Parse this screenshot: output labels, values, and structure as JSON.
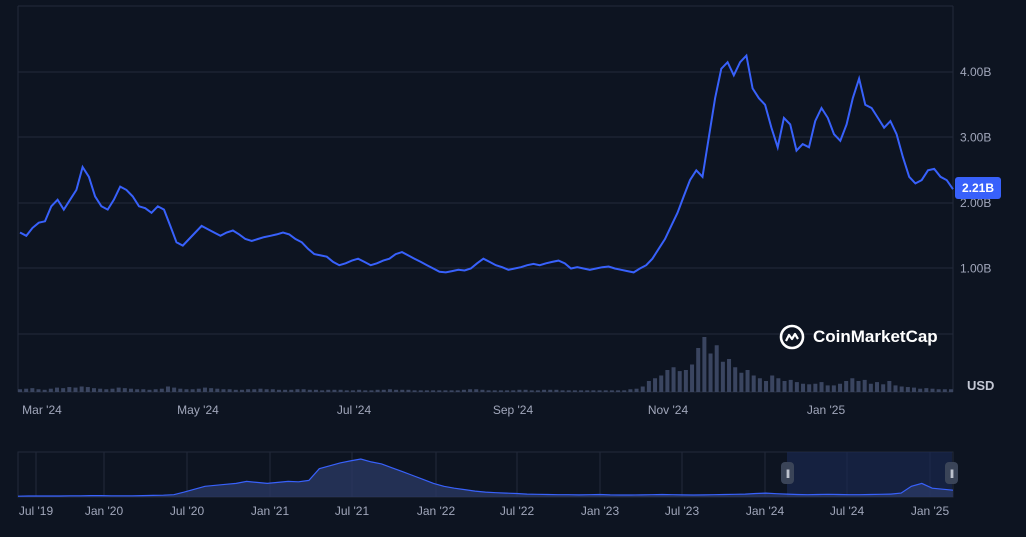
{
  "chart_data": {
    "type": "line",
    "main": {
      "series": [
        {
          "values": [
            1.55,
            1.5,
            1.62,
            1.7,
            1.72,
            1.95,
            2.05,
            1.9,
            2.05,
            2.2,
            2.55,
            2.4,
            2.1,
            1.95,
            1.9,
            2.05,
            2.25,
            2.2,
            2.1,
            1.95,
            1.92,
            1.85,
            1.95,
            1.9,
            1.65,
            1.4,
            1.35,
            1.45,
            1.55,
            1.65,
            1.6,
            1.55,
            1.5,
            1.55,
            1.58,
            1.52,
            1.45,
            1.42,
            1.45,
            1.48,
            1.5,
            1.52,
            1.55,
            1.52,
            1.45,
            1.4,
            1.3,
            1.22,
            1.2,
            1.18,
            1.1,
            1.05,
            1.08,
            1.12,
            1.15,
            1.1,
            1.05,
            1.08,
            1.12,
            1.15,
            1.22,
            1.25,
            1.2,
            1.15,
            1.1,
            1.05,
            1.0,
            0.95,
            0.94,
            0.96,
            0.98,
            0.97,
            1.0,
            1.08,
            1.15,
            1.1,
            1.05,
            1.02,
            0.98,
            1.0,
            1.02,
            1.05,
            1.07,
            1.05,
            1.08,
            1.1,
            1.12,
            1.08,
            1.0,
            1.02,
            1.0,
            0.98,
            1.0,
            1.02,
            1.03,
            1.0,
            0.98,
            0.96,
            0.94,
            1.0,
            1.05,
            1.15,
            1.3,
            1.45,
            1.65,
            1.85,
            2.1,
            2.35,
            2.5,
            2.4,
            3.0,
            3.6,
            4.05,
            4.15,
            3.95,
            4.15,
            4.25,
            3.75,
            3.6,
            3.5,
            3.15,
            2.85,
            3.3,
            3.2,
            2.8,
            2.9,
            2.85,
            3.25,
            3.45,
            3.3,
            3.05,
            2.95,
            3.2,
            3.6,
            3.9,
            3.5,
            3.45,
            3.3,
            3.15,
            3.25,
            3.05,
            2.7,
            2.4,
            2.3,
            2.35,
            2.5,
            2.52,
            2.4,
            2.35,
            2.21
          ]
        }
      ],
      "volume": [
        0.05,
        0.06,
        0.07,
        0.05,
        0.04,
        0.06,
        0.08,
        0.07,
        0.09,
        0.08,
        0.1,
        0.09,
        0.07,
        0.06,
        0.05,
        0.06,
        0.08,
        0.07,
        0.06,
        0.05,
        0.05,
        0.04,
        0.05,
        0.06,
        0.1,
        0.08,
        0.06,
        0.05,
        0.05,
        0.06,
        0.08,
        0.07,
        0.06,
        0.05,
        0.05,
        0.04,
        0.04,
        0.05,
        0.05,
        0.06,
        0.05,
        0.05,
        0.04,
        0.04,
        0.04,
        0.05,
        0.05,
        0.04,
        0.04,
        0.03,
        0.04,
        0.04,
        0.04,
        0.03,
        0.03,
        0.04,
        0.03,
        0.03,
        0.04,
        0.04,
        0.05,
        0.04,
        0.04,
        0.04,
        0.03,
        0.03,
        0.03,
        0.03,
        0.03,
        0.03,
        0.03,
        0.03,
        0.04,
        0.05,
        0.05,
        0.04,
        0.03,
        0.03,
        0.03,
        0.03,
        0.03,
        0.04,
        0.04,
        0.03,
        0.03,
        0.04,
        0.04,
        0.04,
        0.03,
        0.03,
        0.03,
        0.03,
        0.03,
        0.03,
        0.03,
        0.03,
        0.03,
        0.03,
        0.03,
        0.05,
        0.06,
        0.1,
        0.2,
        0.25,
        0.3,
        0.4,
        0.45,
        0.38,
        0.4,
        0.5,
        0.8,
        1.0,
        0.7,
        0.85,
        0.55,
        0.6,
        0.45,
        0.35,
        0.4,
        0.3,
        0.25,
        0.2,
        0.3,
        0.25,
        0.2,
        0.22,
        0.18,
        0.15,
        0.14,
        0.15,
        0.18,
        0.12,
        0.12,
        0.15,
        0.2,
        0.25,
        0.2,
        0.22,
        0.15,
        0.18,
        0.14,
        0.2,
        0.12,
        0.1,
        0.09,
        0.08,
        0.06,
        0.07,
        0.06,
        0.05,
        0.05,
        0.05
      ],
      "x_ticks": [
        "Mar '24",
        "May '24",
        "Jul '24",
        "Sep '24",
        "Nov '24",
        "Jan '25"
      ],
      "y_ticks": [
        "1.00B",
        "2.00B",
        "3.00B",
        "4.00B"
      ],
      "y_tick_values": [
        1,
        2,
        3,
        4
      ],
      "ylim": [
        0,
        4.5
      ],
      "current_value": 2.21,
      "current_label": "2.21B",
      "currency_label": "USD"
    },
    "navigator": {
      "values": [
        0.04,
        0.05,
        0.05,
        0.05,
        0.05,
        0.06,
        0.06,
        0.07,
        0.07,
        0.06,
        0.06,
        0.06,
        0.07,
        0.08,
        0.09,
        0.12,
        0.25,
        0.4,
        0.55,
        0.6,
        0.65,
        0.7,
        0.8,
        0.75,
        0.7,
        0.75,
        0.8,
        0.78,
        0.85,
        1.45,
        1.6,
        1.75,
        1.85,
        1.95,
        1.8,
        1.7,
        1.5,
        1.3,
        1.1,
        0.9,
        0.7,
        0.55,
        0.45,
        0.38,
        0.3,
        0.25,
        0.22,
        0.2,
        0.18,
        0.15,
        0.14,
        0.13,
        0.12,
        0.12,
        0.11,
        0.12,
        0.13,
        0.11,
        0.1,
        0.1,
        0.11,
        0.12,
        0.13,
        0.12,
        0.11,
        0.1,
        0.11,
        0.12,
        0.13,
        0.14,
        0.15,
        0.18,
        0.2,
        0.17,
        0.15,
        0.13,
        0.12,
        0.13,
        0.14,
        0.13,
        0.12,
        0.12,
        0.13,
        0.14,
        0.15,
        0.2,
        0.55,
        0.7,
        0.45,
        0.4,
        0.35
      ],
      "x_ticks": [
        "Jul '19",
        "Jan '20",
        "Jul '20",
        "Jan '21",
        "Jul '21",
        "Jan '22",
        "Jul '22",
        "Jan '23",
        "Jul '23",
        "Jan '24",
        "Jul '24",
        "Jan '25"
      ],
      "selected_range": [
        "Mar '24",
        "Jan '25"
      ]
    },
    "colors": {
      "line": "#3861fb",
      "background": "#0d1421",
      "grid": "#222a3a",
      "volume": "#3a4560"
    }
  },
  "brand": {
    "name": "CoinMarketCap"
  }
}
